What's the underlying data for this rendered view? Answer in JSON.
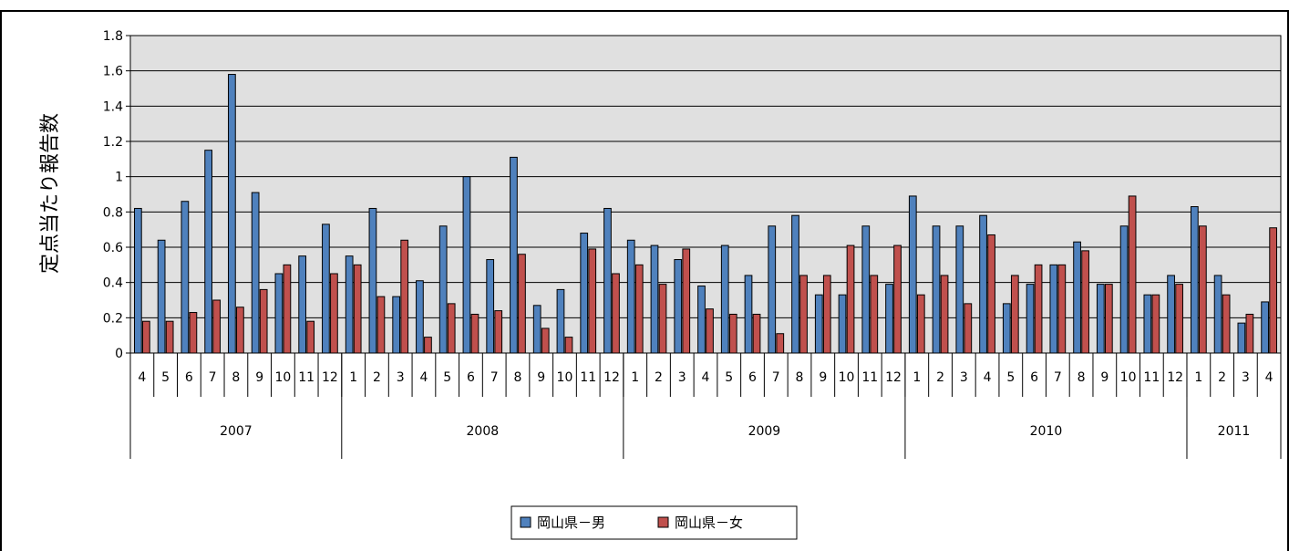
{
  "chart_data": {
    "type": "bar",
    "title": "",
    "ylabel": "定点当たり報告数",
    "xlabel": "",
    "ylim": [
      0,
      1.8
    ],
    "yticks": [
      "0",
      "0.2",
      "0.4",
      "0.6",
      "0.8",
      "1",
      "1.2",
      "1.4",
      "1.6",
      "1.8"
    ],
    "grid": true,
    "legend_position": "bottom",
    "years": [
      {
        "label": "2007",
        "months": [
          "4",
          "5",
          "6",
          "7",
          "8",
          "9",
          "10",
          "11",
          "12"
        ]
      },
      {
        "label": "2008",
        "months": [
          "1",
          "2",
          "3",
          "4",
          "5",
          "6",
          "7",
          "8",
          "9",
          "10",
          "11",
          "12"
        ]
      },
      {
        "label": "2009",
        "months": [
          "1",
          "2",
          "3",
          "4",
          "5",
          "6",
          "7",
          "8",
          "9",
          "10",
          "11",
          "12"
        ]
      },
      {
        "label": "2010",
        "months": [
          "1",
          "2",
          "3",
          "4",
          "5",
          "6",
          "7",
          "8",
          "9",
          "10",
          "11",
          "12"
        ]
      },
      {
        "label": "2011",
        "months": [
          "1",
          "2",
          "3",
          "4"
        ]
      }
    ],
    "series": [
      {
        "name": "岡山県－男",
        "color": "#4f81bd",
        "values": [
          0.82,
          0.64,
          0.86,
          1.15,
          1.58,
          0.91,
          0.45,
          0.55,
          0.73,
          0.55,
          0.82,
          0.32,
          0.41,
          0.72,
          1.0,
          0.53,
          1.11,
          0.27,
          0.36,
          0.68,
          0.82,
          0.64,
          0.61,
          0.53,
          0.38,
          0.61,
          0.44,
          0.72,
          0.78,
          0.33,
          0.33,
          0.72,
          0.39,
          0.89,
          0.72,
          0.72,
          0.78,
          0.28,
          0.39,
          0.5,
          0.63,
          0.39,
          0.72,
          0.33,
          0.44,
          0.83,
          0.44,
          0.17,
          0.29
        ]
      },
      {
        "name": "岡山県－女",
        "color": "#c0504d",
        "values": [
          0.18,
          0.18,
          0.23,
          0.3,
          0.26,
          0.36,
          0.5,
          0.18,
          0.45,
          0.5,
          0.32,
          0.64,
          0.09,
          0.28,
          0.22,
          0.24,
          0.56,
          0.14,
          0.09,
          0.59,
          0.45,
          0.5,
          0.39,
          0.59,
          0.25,
          0.22,
          0.22,
          0.11,
          0.44,
          0.44,
          0.61,
          0.44,
          0.61,
          0.33,
          0.44,
          0.28,
          0.67,
          0.44,
          0.5,
          0.5,
          0.58,
          0.39,
          0.89,
          0.33,
          0.39,
          0.72,
          0.33,
          0.22,
          0.71
        ]
      }
    ]
  }
}
